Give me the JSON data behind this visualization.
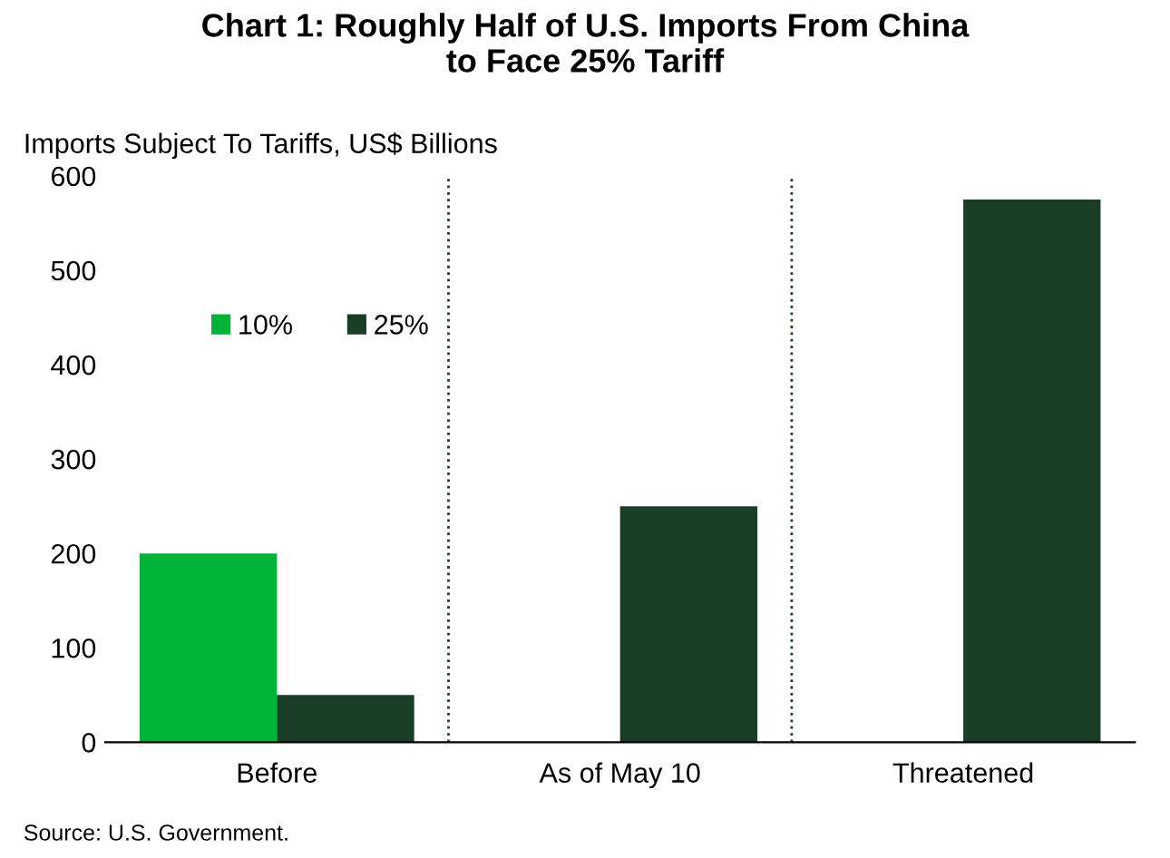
{
  "chart_data": {
    "type": "bar",
    "title": "Chart 1: Roughly Half of U.S. Imports From China\nto Face 25% Tariff",
    "ylabel": "Imports Subject To Tariffs, US$ Billions",
    "categories": [
      "Before",
      "As of May 10",
      "Threatened"
    ],
    "series": [
      {
        "name": "10%",
        "color": "#00b336",
        "values": [
          200,
          null,
          null
        ]
      },
      {
        "name": "25%",
        "color": "#1a3d26",
        "values": [
          50,
          250,
          575
        ]
      }
    ],
    "ylim": [
      0,
      600
    ],
    "yticks": [
      0,
      100,
      200,
      300,
      400,
      500,
      600
    ],
    "legend": "top left",
    "grid": false,
    "annotations": [
      "Source: U.S. Government."
    ]
  }
}
